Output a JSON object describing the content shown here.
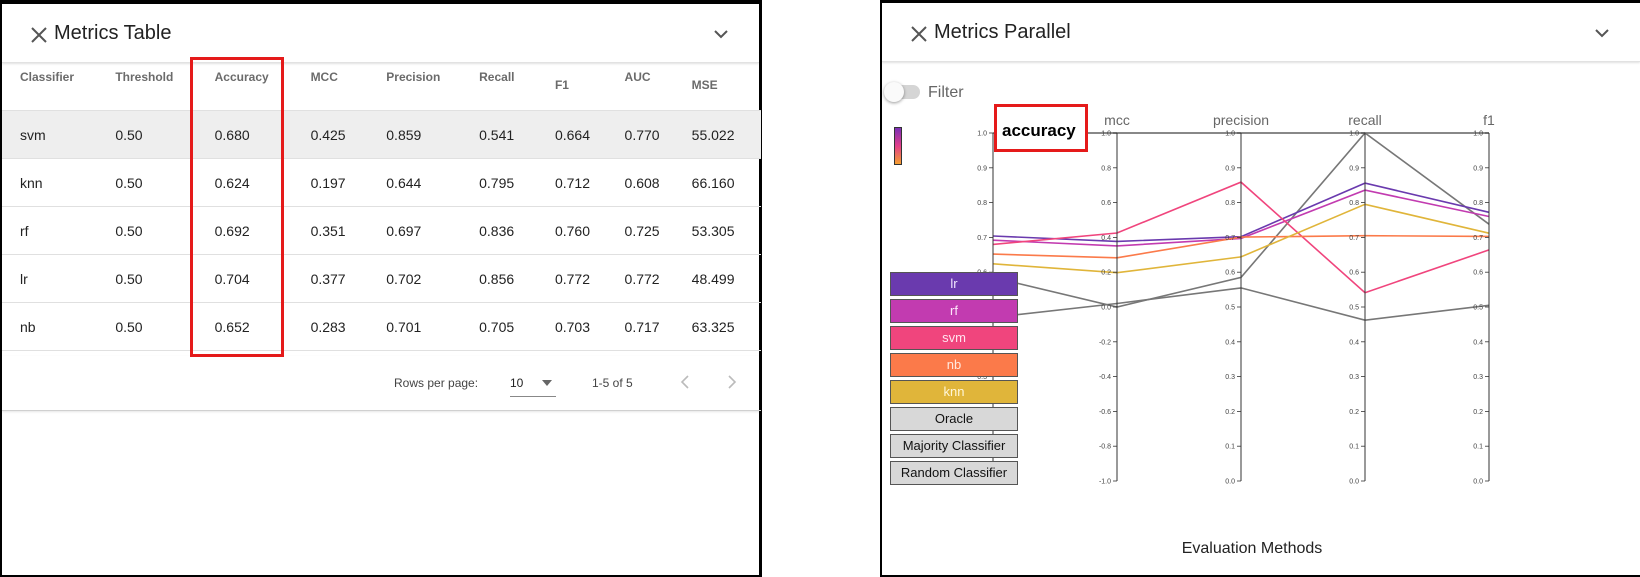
{
  "metrics_table": {
    "title": "Metrics Table",
    "columns": [
      "Classifier",
      "Threshold",
      "Accuracy",
      "MCC",
      "Precision",
      "Recall",
      "F1",
      "AUC",
      "MSE"
    ],
    "rows": [
      [
        "svm",
        "0.50",
        "0.680",
        "0.425",
        "0.859",
        "0.541",
        "0.664",
        "0.770",
        "55.022"
      ],
      [
        "knn",
        "0.50",
        "0.624",
        "0.197",
        "0.644",
        "0.795",
        "0.712",
        "0.608",
        "66.160"
      ],
      [
        "rf",
        "0.50",
        "0.692",
        "0.351",
        "0.697",
        "0.836",
        "0.760",
        "0.725",
        "53.305"
      ],
      [
        "lr",
        "0.50",
        "0.704",
        "0.377",
        "0.702",
        "0.856",
        "0.772",
        "0.772",
        "48.499"
      ],
      [
        "nb",
        "0.50",
        "0.652",
        "0.283",
        "0.701",
        "0.705",
        "0.703",
        "0.717",
        "63.325"
      ]
    ],
    "highlighted_row": 0,
    "pagination": {
      "rows_per_page_label": "Rows per page:",
      "rows_per_page_value": "10",
      "range": "1-5 of 5"
    }
  },
  "metrics_parallel": {
    "title": "Metrics Parallel",
    "filter_label": "Filter",
    "filter_on": false,
    "highlighted_axis_label": "accuracy",
    "legend": [
      {
        "label": "lr",
        "bg": "#6a3aae",
        "text": "#f0e6ff"
      },
      {
        "label": "rf",
        "bg": "#c23bb0",
        "text": "#fde6fa"
      },
      {
        "label": "svm",
        "bg": "#f0457d",
        "text": "#ffe3ee"
      },
      {
        "label": "nb",
        "bg": "#fb7a4a",
        "text": "#ffe9df"
      },
      {
        "label": "knn",
        "bg": "#e0b53a",
        "text": "#fff6d8"
      },
      {
        "label": "Oracle",
        "bg": "#d8d8d8",
        "text": "#111111"
      },
      {
        "label": "Majority Classifier",
        "bg": "#d8d8d8",
        "text": "#111111"
      },
      {
        "label": "Random Classifier",
        "bg": "#d8d8d8",
        "text": "#111111"
      }
    ],
    "x_title": "Evaluation Methods"
  },
  "chart_data": {
    "type": "parallel",
    "axes": [
      {
        "name": "accuracy",
        "range": [
          0,
          1
        ],
        "ticks": [
          "0.0",
          "0.1",
          "0.2",
          "0.3",
          "0.4",
          "0.5",
          "0.6",
          "0.7",
          "0.8",
          "0.9",
          "1.0"
        ]
      },
      {
        "name": "mcc",
        "range": [
          -1,
          1
        ],
        "ticks": [
          "-1.0",
          "-0.8",
          "-0.6",
          "-0.4",
          "-0.2",
          "0.0",
          "0.2",
          "0.4",
          "0.6",
          "0.8",
          "1.0"
        ]
      },
      {
        "name": "precision",
        "range": [
          0,
          1
        ],
        "ticks": [
          "0.0",
          "0.1",
          "0.2",
          "0.3",
          "0.4",
          "0.5",
          "0.6",
          "0.7",
          "0.8",
          "0.9",
          "1.0"
        ]
      },
      {
        "name": "recall",
        "range": [
          0,
          1
        ],
        "ticks": [
          "0.0",
          "0.1",
          "0.2",
          "0.3",
          "0.4",
          "0.5",
          "0.6",
          "0.7",
          "0.8",
          "0.9",
          "1.0"
        ]
      },
      {
        "name": "f1",
        "range": [
          0,
          1
        ],
        "ticks": [
          "0.0",
          "0.1",
          "0.2",
          "0.3",
          "0.4",
          "0.5",
          "0.6",
          "0.7",
          "0.8",
          "0.9",
          "1.0"
        ]
      }
    ],
    "series": [
      {
        "name": "lr",
        "color": "#6a3aae",
        "values": [
          0.704,
          0.377,
          0.702,
          0.856,
          0.772
        ]
      },
      {
        "name": "rf",
        "color": "#c23bb0",
        "values": [
          0.692,
          0.351,
          0.697,
          0.836,
          0.76
        ]
      },
      {
        "name": "svm",
        "color": "#f0457d",
        "values": [
          0.68,
          0.425,
          0.859,
          0.541,
          0.664
        ]
      },
      {
        "name": "nb",
        "color": "#fb7a4a",
        "values": [
          0.652,
          0.283,
          0.701,
          0.705,
          0.703
        ]
      },
      {
        "name": "knn",
        "color": "#e0b53a",
        "values": [
          0.624,
          0.197,
          0.644,
          0.795,
          0.712
        ]
      },
      {
        "name": "Oracle",
        "color": "#777777",
        "values": [
          1.0,
          1.0,
          1.0,
          1.0,
          1.0
        ]
      },
      {
        "name": "Majority Classifier",
        "color": "#777777",
        "values": [
          0.585,
          0.0,
          0.585,
          1.0,
          0.738
        ]
      },
      {
        "name": "Random Classifier",
        "color": "#777777",
        "values": [
          0.47,
          0.02,
          0.555,
          0.462,
          0.505
        ]
      }
    ],
    "xlabel": "Evaluation Methods"
  }
}
